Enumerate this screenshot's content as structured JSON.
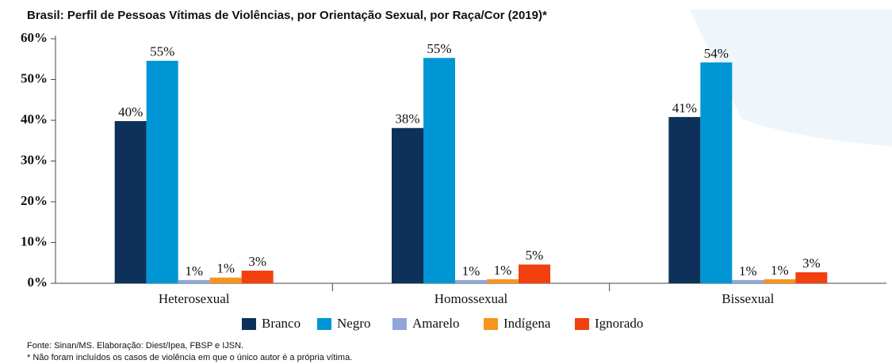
{
  "chart_data": {
    "type": "bar",
    "title": "Brasil: Perfil de Pessoas Vítimas de Violências, por Orientação Sexual, por Raça/Cor (2019)*",
    "categories": [
      "Heterosexual",
      "Homossexual",
      "Bissexual"
    ],
    "series": [
      {
        "name": "Branco",
        "color": "#0d3158",
        "values": [
          39.8,
          38.1,
          40.8
        ],
        "value_labels": [
          "40%",
          "38%",
          "41%"
        ]
      },
      {
        "name": "Negro",
        "color": "#0096d6",
        "values": [
          54.6,
          55.3,
          54.2
        ],
        "value_labels": [
          "55%",
          "55%",
          "54%"
        ]
      },
      {
        "name": "Amarelo",
        "color": "#8fa6dc",
        "values": [
          0.8,
          0.8,
          0.8
        ],
        "value_labels": [
          "1%",
          "1%",
          "1%"
        ]
      },
      {
        "name": "Indígena",
        "color": "#f7941d",
        "values": [
          1.4,
          1.0,
          1.0
        ],
        "value_labels": [
          "1%",
          "1%",
          "1%"
        ]
      },
      {
        "name": "Ignorado",
        "color": "#f2400f",
        "values": [
          3.1,
          4.6,
          2.7
        ],
        "value_labels": [
          "3%",
          "5%",
          "3%"
        ]
      }
    ],
    "ylim": [
      0,
      60
    ],
    "yticks": [
      {
        "value": 0,
        "label": "0%"
      },
      {
        "value": 10,
        "label": "10%"
      },
      {
        "value": 20,
        "label": "20%"
      },
      {
        "value": 30,
        "label": "30%"
      },
      {
        "value": 40,
        "label": "40%"
      },
      {
        "value": 50,
        "label": "50%"
      },
      {
        "value": 60,
        "label": "60%"
      }
    ],
    "legend": "bottom",
    "source": "Fonte: Sinan/MS. Elaboração: Diest/Ipea, FBSP e IJSN.",
    "note": "* Não foram incluídos os casos de violência em que o único autor é a própria vítima."
  }
}
